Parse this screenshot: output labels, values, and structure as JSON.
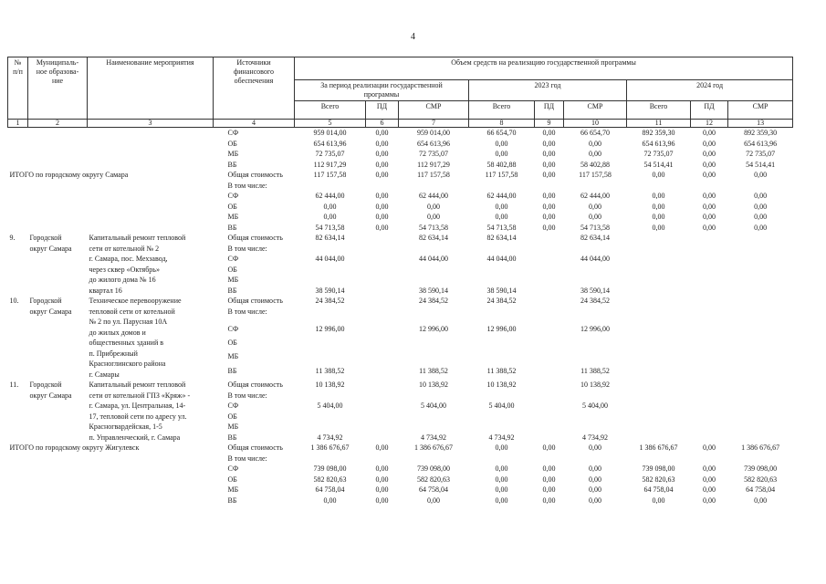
{
  "page_number": "4",
  "header": {
    "col1": [
      "№",
      "п/п"
    ],
    "col2": [
      "Муниципаль-",
      "ное образова-",
      "ние"
    ],
    "col3": "Наименование мероприятия",
    "col4": [
      "Источники",
      "финансового",
      "обеспечения"
    ],
    "funding": "Объем средств на реализацию государственной программы",
    "period_total": [
      "За период реализации государственной",
      "программы"
    ],
    "year1": "2023 год",
    "year2": "2024 год",
    "subcols": [
      "Всего",
      "ПД",
      "СМР",
      "Всего",
      "ПД",
      "СМР",
      "Всего",
      "ПД",
      "СМР"
    ],
    "numbers": [
      "1",
      "2",
      "3",
      "4",
      "5",
      "6",
      "7",
      "8",
      "9",
      "10",
      "11",
      "12",
      "13"
    ]
  },
  "body": [
    {
      "rows": [
        [
          "СФ",
          "959 014,00",
          "0,00",
          "959 014,00",
          "66 654,70",
          "0,00",
          "66 654,70",
          "892 359,30",
          "0,00",
          "892 359,30"
        ],
        [
          "ОБ",
          "654 613,96",
          "0,00",
          "654 613,96",
          "0,00",
          "0,00",
          "0,00",
          "654 613,96",
          "0,00",
          "654 613,96"
        ],
        [
          "МБ",
          "72 735,07",
          "0,00",
          "72 735,07",
          "0,00",
          "0,00",
          "0,00",
          "72 735,07",
          "0,00",
          "72 735,07"
        ],
        [
          "ВБ",
          "112 917,29",
          "0,00",
          "112 917,29",
          "58 402,88",
          "0,00",
          "58 402,88",
          "54 514,41",
          "0,00",
          "54 514,41"
        ]
      ]
    },
    {
      "label": "ИТОГО по городскому округу Самара",
      "rows": [
        [
          [
            "Общая стоимость",
            "В том числе:"
          ],
          "117 157,58",
          "0,00",
          "117 157,58",
          "117 157,58",
          "0,00",
          "117 157,58",
          "0,00",
          "0,00",
          "0,00"
        ],
        [
          "СФ",
          "62 444,00",
          "0,00",
          "62 444,00",
          "62 444,00",
          "0,00",
          "62 444,00",
          "0,00",
          "0,00",
          "0,00"
        ],
        [
          "ОБ",
          "0,00",
          "0,00",
          "0,00",
          "0,00",
          "0,00",
          "0,00",
          "0,00",
          "0,00",
          "0,00"
        ],
        [
          "МБ",
          "0,00",
          "0,00",
          "0,00",
          "0,00",
          "0,00",
          "0,00",
          "0,00",
          "0,00",
          "0,00"
        ],
        [
          "ВБ",
          "54 713,58",
          "0,00",
          "54 713,58",
          "54 713,58",
          "0,00",
          "54 713,58",
          "0,00",
          "0,00",
          "0,00"
        ]
      ]
    },
    {
      "no": "9.",
      "municipality": [
        "Городской",
        "округ Самара"
      ],
      "event": [
        "Капитальный ремонт тепловой",
        "сети от котельной № 2",
        "г. Самара, пос. Мехзавод,",
        "через сквер «Октябрь»",
        "до жилого дома № 16",
        "квартал 16"
      ],
      "rows": [
        [
          [
            "Общая стоимость",
            "В том числе:"
          ],
          "82 634,14",
          null,
          "82 634,14",
          "82 634,14",
          null,
          "82 634,14",
          null,
          null,
          null
        ],
        [
          "СФ",
          "44 044,00",
          null,
          "44 044,00",
          "44 044,00",
          null,
          "44 044,00",
          null,
          null,
          null
        ],
        [
          "ОБ",
          null,
          null,
          null,
          null,
          null,
          null,
          null,
          null,
          null
        ],
        [
          "МБ",
          null,
          null,
          null,
          null,
          null,
          null,
          null,
          null,
          null
        ],
        [
          "ВБ",
          "38 590,14",
          null,
          "38 590,14",
          "38 590,14",
          null,
          "38 590,14",
          null,
          null,
          null
        ]
      ]
    },
    {
      "no": "10.",
      "municipality": [
        "Городской",
        "округ Самара"
      ],
      "event": [
        "Техническое перевооружение",
        "тепловой сети от котельной",
        "№ 2 по ул. Парусная 10А",
        "до жилых домов и",
        "общественных зданий в",
        "п. Прибрежный",
        "Красноглинского района",
        "г. Самары"
      ],
      "rows": [
        [
          [
            "Общая стоимость",
            "В том числе:"
          ],
          "24 384,52",
          null,
          "24 384,52",
          "24 384,52",
          null,
          "24 384,52",
          null,
          null,
          null
        ],
        [
          "СФ",
          "12 996,00",
          null,
          "12 996,00",
          "12 996,00",
          null,
          "12 996,00",
          null,
          null,
          null
        ],
        [
          "ОБ",
          null,
          null,
          null,
          null,
          null,
          null,
          null,
          null,
          null
        ],
        [
          "МБ",
          null,
          null,
          null,
          null,
          null,
          null,
          null,
          null,
          null
        ],
        [
          "ВБ",
          "11 388,52",
          null,
          "11 388,52",
          "11 388,52",
          null,
          "11 388,52",
          null,
          null,
          null
        ]
      ]
    },
    {
      "no": "11.",
      "municipality": [
        "Городской",
        "округ Самара"
      ],
      "event": [
        "Капитальный ремонт тепловой",
        "сети от котельной ГПЗ «Кряж» -",
        "г. Самара, ул. Центральная, 14-",
        "17, тепловой сети по адресу ул.",
        "Красногвардейская, 1-5",
        "п. Управленческий, г. Самара"
      ],
      "rows": [
        [
          [
            "Общая стоимость",
            "В том числе:"
          ],
          "10 138,92",
          null,
          "10 138,92",
          "10 138,92",
          null,
          "10 138,92",
          null,
          null,
          null
        ],
        [
          "СФ",
          "5 404,00",
          null,
          "5 404,00",
          "5 404,00",
          null,
          "5 404,00",
          null,
          null,
          null
        ],
        [
          "ОБ",
          null,
          null,
          null,
          null,
          null,
          null,
          null,
          null,
          null
        ],
        [
          "МБ",
          null,
          null,
          null,
          null,
          null,
          null,
          null,
          null,
          null
        ],
        [
          "ВБ",
          "4 734,92",
          null,
          "4 734,92",
          "4 734,92",
          null,
          "4 734,92",
          null,
          null,
          null
        ]
      ]
    },
    {
      "label": "ИТОГО по городскому округу Жигулевск",
      "rows": [
        [
          [
            "Общая стоимость",
            "В том числе:"
          ],
          "1 386 676,67",
          "0,00",
          "1 386 676,67",
          "0,00",
          "0,00",
          "0,00",
          "1 386 676,67",
          "0,00",
          "1 386 676,67"
        ],
        [
          "СФ",
          "739 098,00",
          "0,00",
          "739 098,00",
          "0,00",
          "0,00",
          "0,00",
          "739 098,00",
          "0,00",
          "739 098,00"
        ],
        [
          "ОБ",
          "582 820,63",
          "0,00",
          "582 820,63",
          "0,00",
          "0,00",
          "0,00",
          "582 820,63",
          "0,00",
          "582 820,63"
        ],
        [
          "МБ",
          "64 758,04",
          "0,00",
          "64 758,04",
          "0,00",
          "0,00",
          "0,00",
          "64 758,04",
          "0,00",
          "64 758,04"
        ],
        [
          "ВБ",
          "0,00",
          "0,00",
          "0,00",
          "0,00",
          "0,00",
          "0,00",
          "0,00",
          "0,00",
          "0,00"
        ]
      ]
    }
  ]
}
